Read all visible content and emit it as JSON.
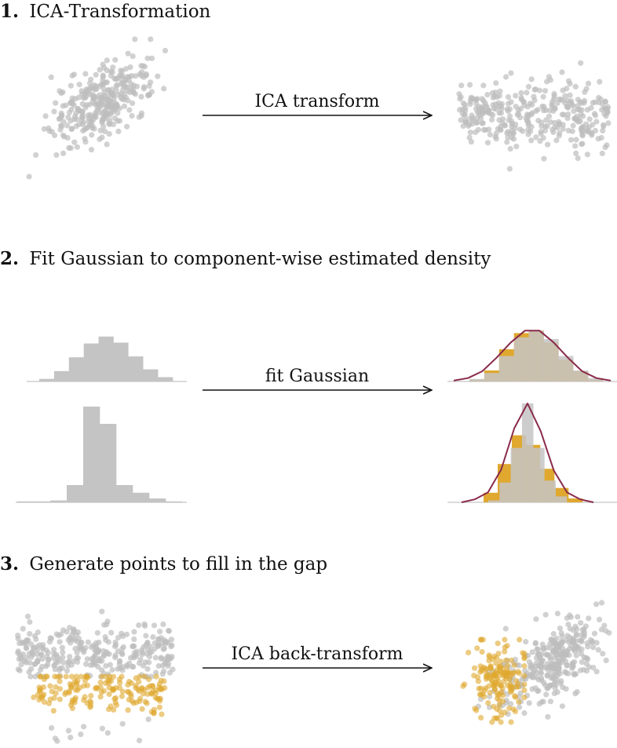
{
  "steps": [
    {
      "number": "1.",
      "title": "ICA-Transformation",
      "arrow_label": "ICA transform"
    },
    {
      "number": "2.",
      "title": "Fit Gaussian to component-wise estimated density",
      "arrow_label": "fit Gaussian"
    },
    {
      "number": "3.",
      "title": "Generate points to fill in the gap",
      "arrow_label": "ICA back-transform"
    }
  ],
  "colors": {
    "gray_point": "#bdbdbd",
    "gray_bar": "#c4c4c4",
    "gold": "#e0a82e",
    "fit_curve": "#8a2a4a",
    "baseline": "#cfcfcf",
    "text": "#111111"
  },
  "histograms": {
    "hist1_original": [
      0.03,
      0.12,
      0.28,
      0.44,
      0.52,
      0.45,
      0.29,
      0.14,
      0.05
    ],
    "hist2_original": [
      0.01,
      0.01,
      0.02,
      0.18,
      1.0,
      0.82,
      0.18,
      0.1,
      0.04,
      0.01
    ],
    "hist1_fit_gray": [
      0.03,
      0.1,
      0.3,
      0.52,
      0.6,
      0.5,
      0.3,
      0.13,
      0.04
    ],
    "hist1_fit_gold": [
      0.02,
      0.13,
      0.38,
      0.57,
      0.6,
      0.46,
      0.26,
      0.12,
      0.02
    ],
    "hist1_curve": [
      0.01,
      0.04,
      0.12,
      0.28,
      0.46,
      0.6,
      0.6,
      0.46,
      0.28,
      0.12,
      0.04,
      0.01
    ],
    "hist2_fit_gray": [
      0.02,
      0.2,
      0.55,
      1.0,
      0.55,
      0.22,
      0.06
    ],
    "hist2_fit_gold": [
      0.1,
      0.4,
      0.7,
      0.6,
      0.35,
      0.15,
      0.04
    ],
    "hist2_curve": [
      0.0,
      0.03,
      0.1,
      0.33,
      0.75,
      1.0,
      0.72,
      0.32,
      0.1,
      0.03,
      0.0
    ]
  }
}
